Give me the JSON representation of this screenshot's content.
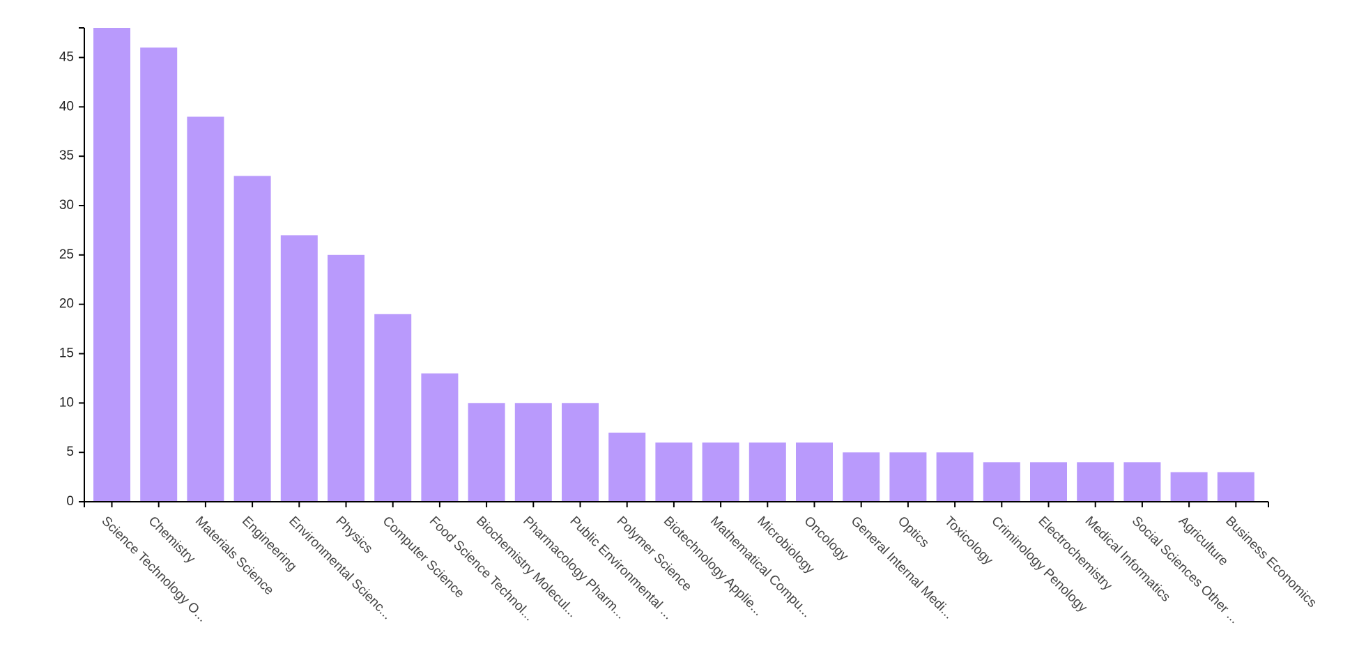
{
  "chart_data": {
    "type": "bar",
    "title": "",
    "xlabel": "",
    "ylabel": "",
    "ylim": [
      0,
      48
    ],
    "y_ticks": [
      0,
      5,
      10,
      15,
      20,
      25,
      30,
      35,
      40,
      45
    ],
    "grid": false,
    "legend": "none",
    "bar_color": "#b99afc",
    "categories": [
      "Science Technology O...",
      "Chemistry",
      "Materials Science",
      "Engineering",
      "Environmental Scienc...",
      "Physics",
      "Computer Science",
      "Food Science Technol...",
      "Biochemistry Molecul...",
      "Pharmacology Pharm...",
      "Public Environmental ...",
      "Polymer Science",
      "Biotechnology Applie...",
      "Mathematical Compu...",
      "Microbiology",
      "Oncology",
      "General Internal Medi...",
      "Optics",
      "Toxicology",
      "Criminology Penology",
      "Electrochemistry",
      "Medical Informatics",
      "Social Sciences Other ...",
      "Agriculture",
      "Business Economics"
    ],
    "values": [
      48,
      46,
      39,
      33,
      27,
      25,
      19,
      13,
      10,
      10,
      10,
      7,
      6,
      6,
      6,
      6,
      5,
      5,
      5,
      4,
      4,
      4,
      4,
      3,
      3
    ]
  }
}
